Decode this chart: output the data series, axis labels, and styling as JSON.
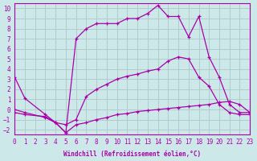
{
  "xlabel": "Windchill (Refroidissement éolien,°C)",
  "bg_color": "#cde8e8",
  "grid_color": "#b0cccc",
  "line_color": "#aa00aa",
  "line1_x": [
    0,
    1,
    3,
    4,
    5,
    6,
    7,
    8,
    9,
    10,
    11,
    12,
    13,
    14,
    15,
    16,
    17,
    18,
    19,
    20,
    21,
    22,
    23
  ],
  "line1_y": [
    3.2,
    1.1,
    -0.5,
    -1.3,
    -2.3,
    7.0,
    8.0,
    8.5,
    8.5,
    8.5,
    9.0,
    9.0,
    9.5,
    10.3,
    9.2,
    9.2,
    7.2,
    9.2,
    5.2,
    3.2,
    0.5,
    -0.3,
    -0.3
  ],
  "line2_x": [
    0,
    1,
    3,
    4,
    5,
    6,
    7,
    8,
    9,
    10,
    11,
    12,
    13,
    14,
    15,
    16,
    17,
    18,
    19,
    20,
    21,
    22,
    23
  ],
  "line2_y": [
    0.0,
    -0.3,
    -0.8,
    -1.3,
    -1.5,
    -1.0,
    1.3,
    2.0,
    2.5,
    3.0,
    3.3,
    3.5,
    3.8,
    4.0,
    4.8,
    5.2,
    5.0,
    3.2,
    2.3,
    0.5,
    -0.3,
    -0.5,
    -0.5
  ],
  "line3_x": [
    0,
    1,
    3,
    4,
    5,
    6,
    7,
    8,
    9,
    10,
    11,
    12,
    13,
    14,
    15,
    16,
    17,
    18,
    19,
    20,
    21,
    22,
    23
  ],
  "line3_y": [
    -0.3,
    -0.5,
    -0.7,
    -1.3,
    -2.3,
    -1.5,
    -1.3,
    -1.0,
    -0.8,
    -0.5,
    -0.4,
    -0.2,
    -0.1,
    0.0,
    0.1,
    0.2,
    0.3,
    0.4,
    0.5,
    0.7,
    0.8,
    0.5,
    -0.3
  ],
  "xlim": [
    0,
    23
  ],
  "ylim": [
    -2.5,
    10.5
  ],
  "xticks": [
    0,
    1,
    2,
    3,
    4,
    5,
    6,
    7,
    8,
    9,
    10,
    11,
    12,
    13,
    14,
    15,
    16,
    17,
    18,
    19,
    20,
    21,
    22,
    23
  ],
  "yticks": [
    -2,
    -1,
    0,
    1,
    2,
    3,
    4,
    5,
    6,
    7,
    8,
    9,
    10
  ]
}
